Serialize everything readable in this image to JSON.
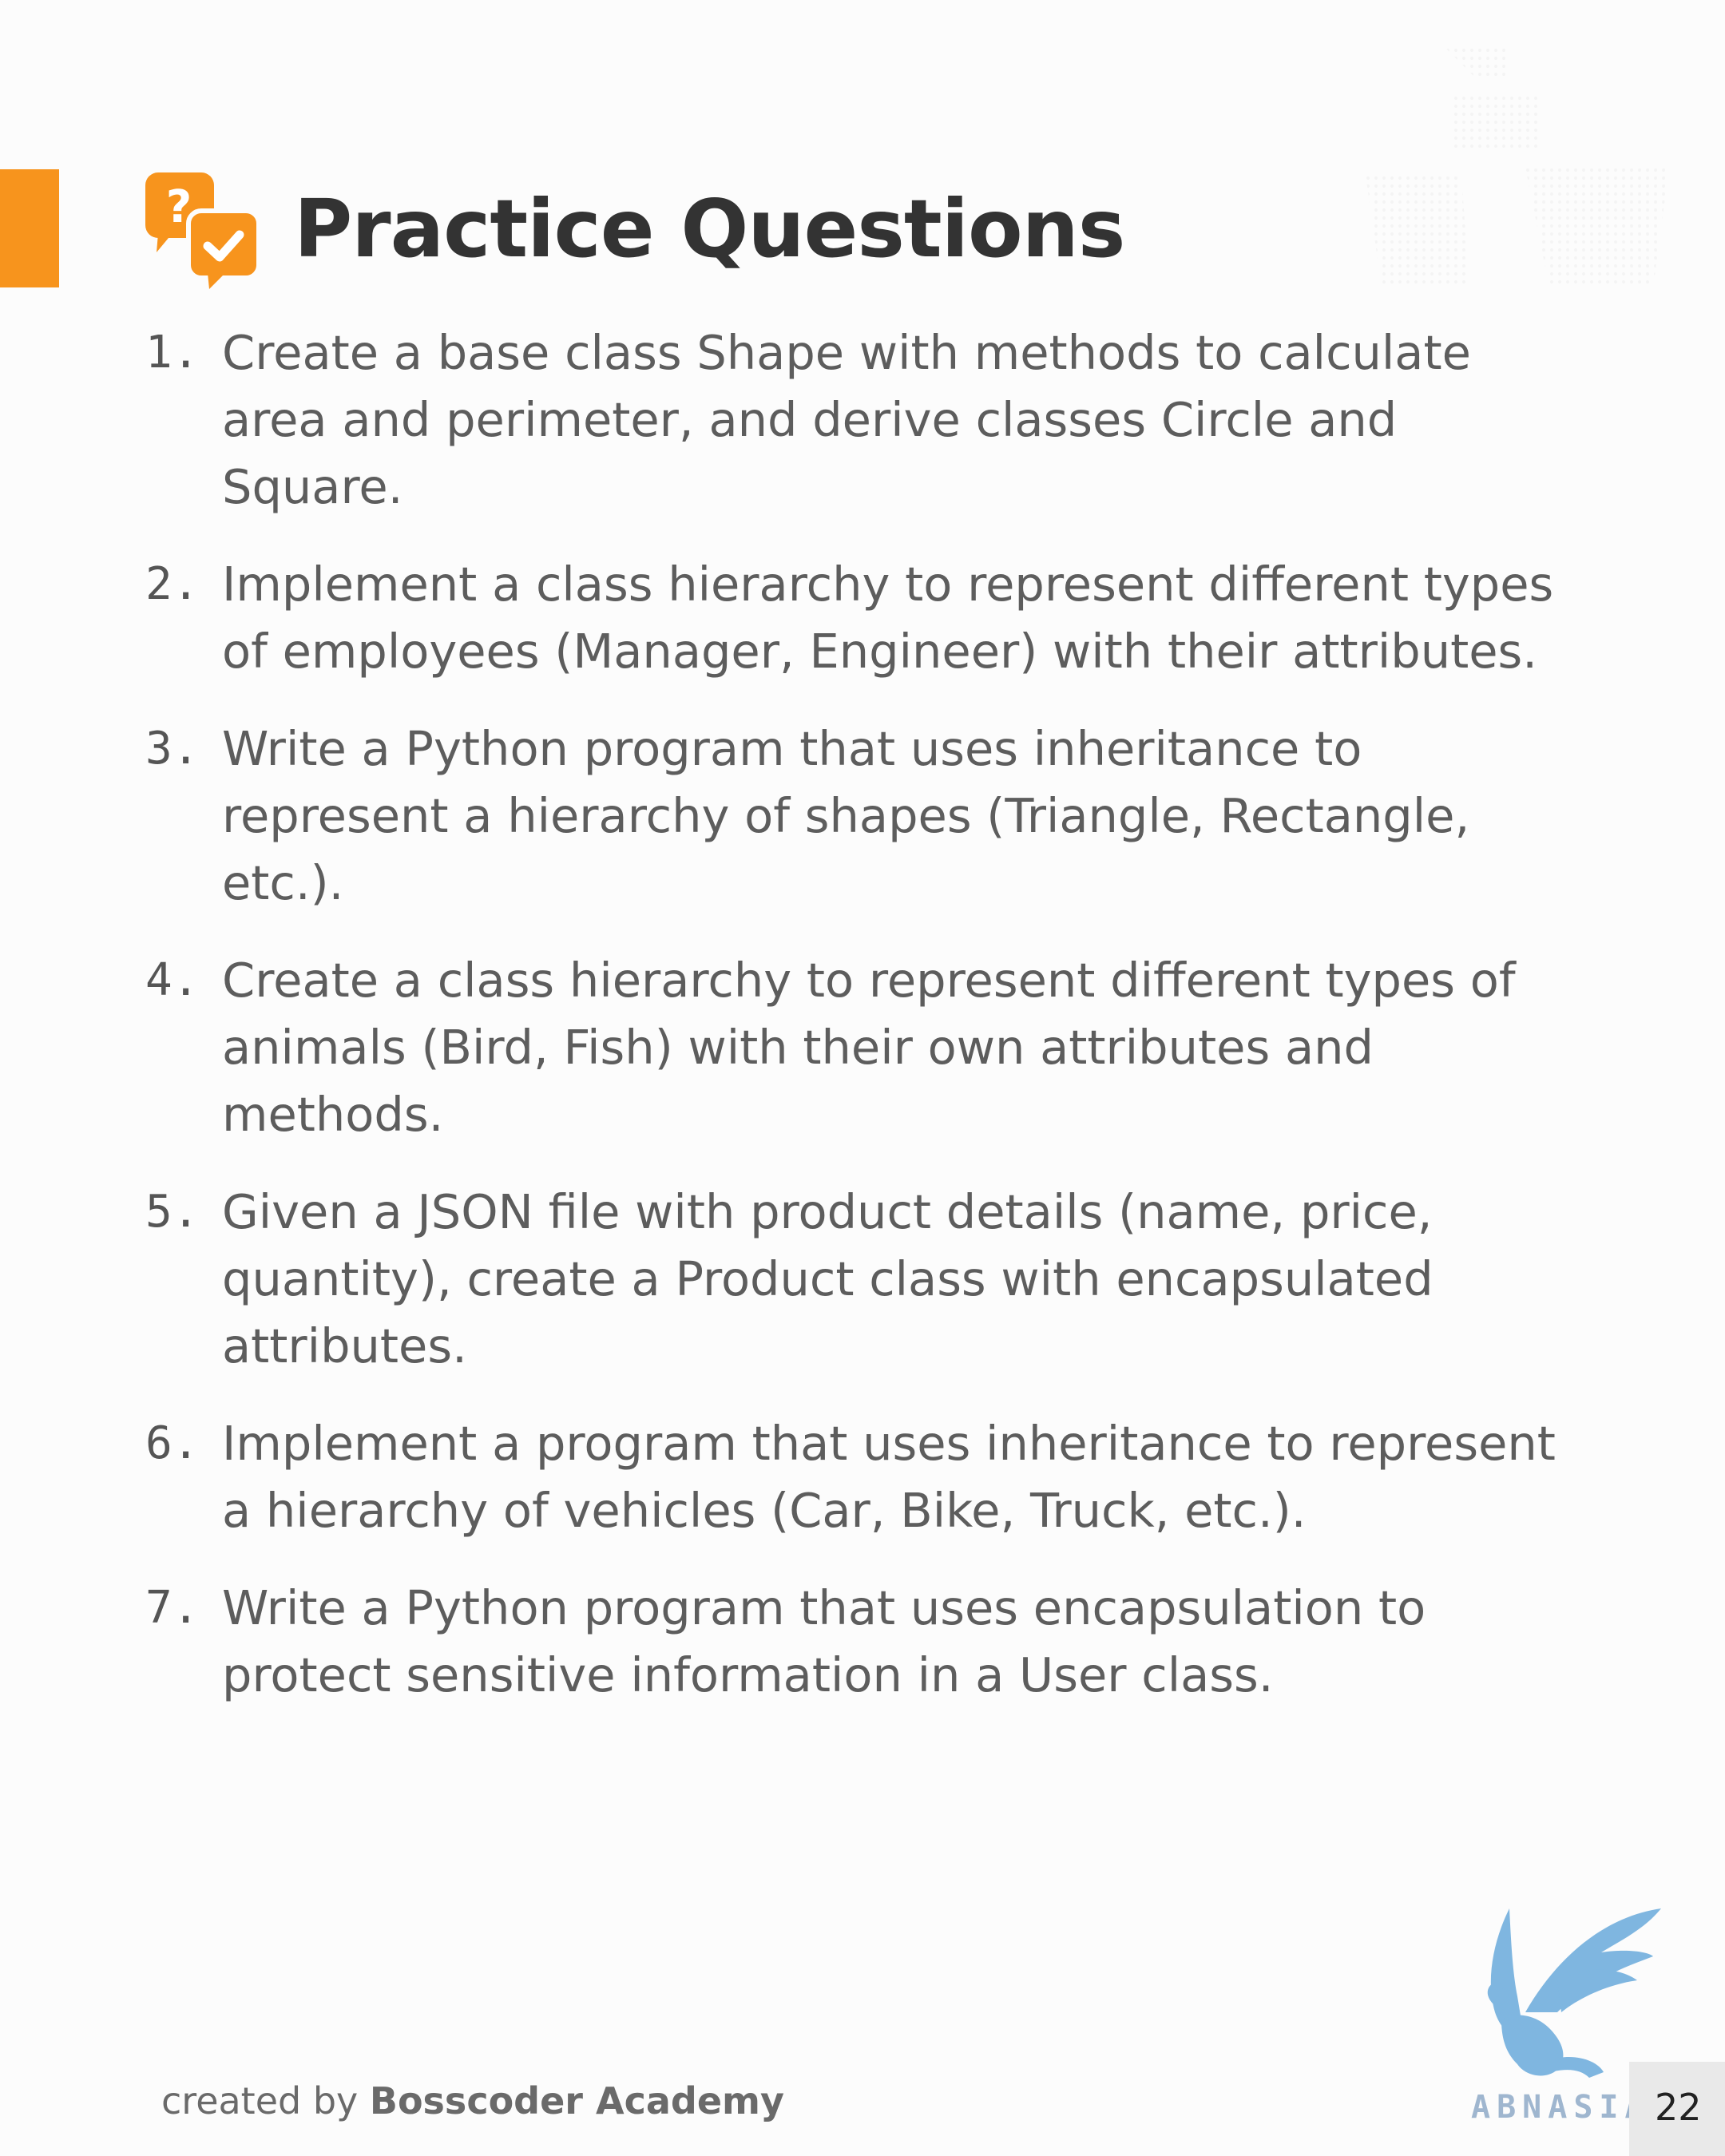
{
  "header": {
    "title": "Practice Questions",
    "icon": "question-answer-chat-icon",
    "accent_color": "#f7941d"
  },
  "questions": [
    {
      "number": "1.",
      "text": "Create a base class Shape with methods to calculate area and perimeter, and derive classes Circle and Square."
    },
    {
      "number": "2.",
      "text": "Implement a class hierarchy to represent different types of employees (Manager, Engineer) with their attributes."
    },
    {
      "number": "3.",
      "text": "Write a Python program that uses inheritance to represent a hierarchy of shapes (Triangle, Rectangle, etc.)."
    },
    {
      "number": "4.",
      "text": "Create a class hierarchy to represent different types of animals (Bird, Fish) with their own attributes and methods."
    },
    {
      "number": "5.",
      "text": "Given a JSON file with product details (name, price, quantity), create a Product class with encapsulated attributes."
    },
    {
      "number": "6.",
      "text": "Implement a program that uses inheritance to represent a hierarchy of vehicles (Car, Bike, Truck, etc.)."
    },
    {
      "number": "7.",
      "text": "Write a Python program that uses encapsulation to protect sensitive information in a User class."
    }
  ],
  "footer": {
    "prefix": "created by ",
    "brand": "Bosscoder Academy",
    "page_number": "22"
  },
  "watermark": {
    "text": "ABNASIA.ORG",
    "color": "#7fb6e0"
  }
}
